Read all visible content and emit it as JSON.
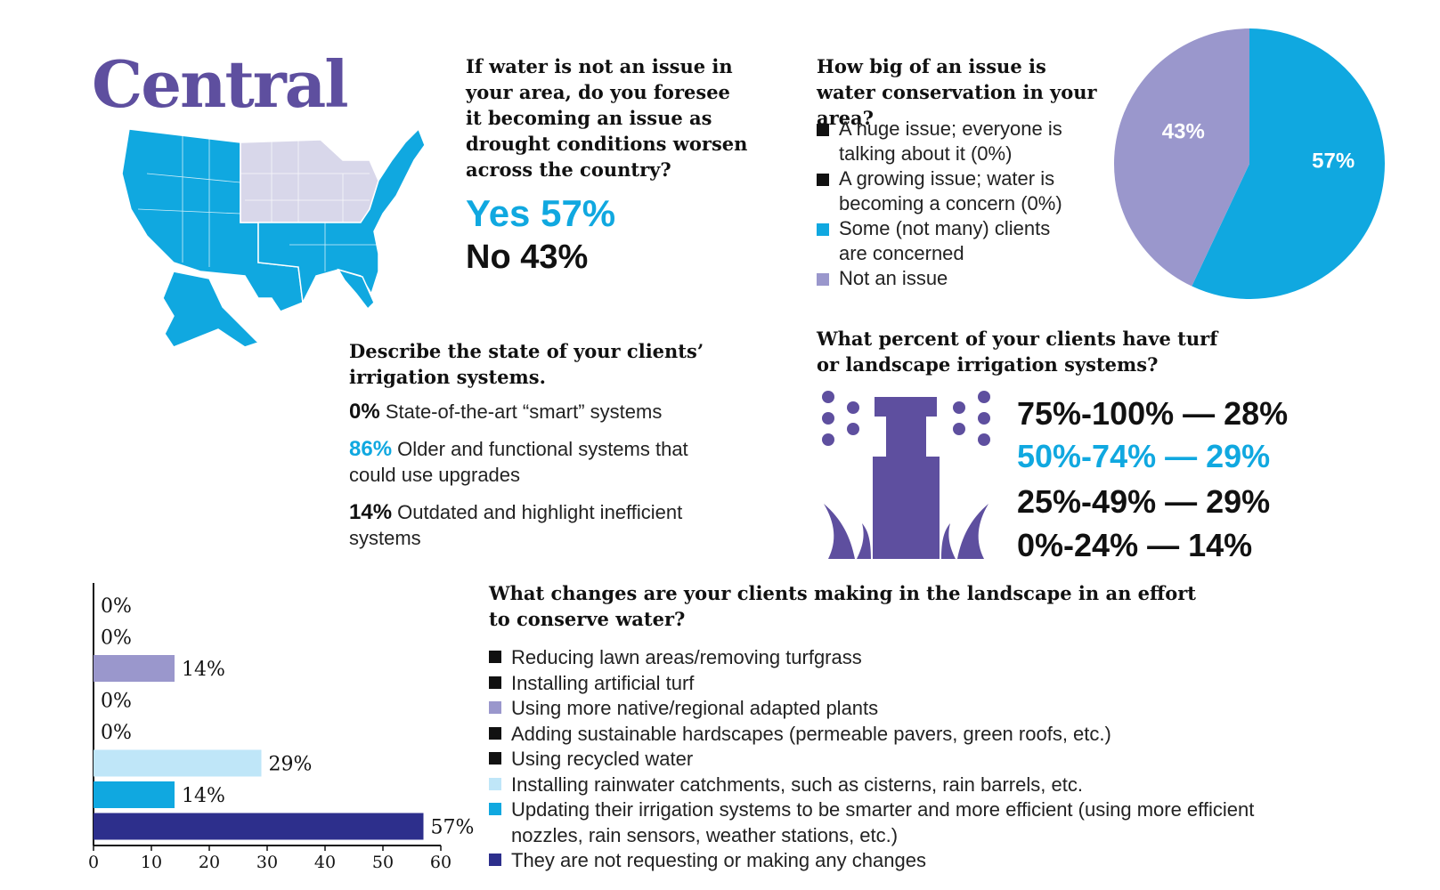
{
  "region_title": "Central",
  "colors": {
    "purple": "#5e4f9f",
    "lavender": "#9a97cc",
    "blue": "#10a8e0",
    "light_blue": "#bfe6f8",
    "navy": "#2d2f8c",
    "black": "#111111",
    "map_highlight": "#10a8e0",
    "map_region": "#d8d7ea"
  },
  "drought_question": {
    "text": "If water is not an issue in your area, do you foresee it becoming an issue as drought conditions worsen across the country?",
    "yes": "Yes 57%",
    "no": "No 43%"
  },
  "conservation_question": {
    "text": "How big of an issue is water conservation in your area?",
    "legend": [
      {
        "label": "A huge issue; everyone is talking about it (0%)",
        "color": "#111111"
      },
      {
        "label": "A growing issue; water is becoming a concern (0%)",
        "color": "#111111"
      },
      {
        "label": "Some (not many) clients are concerned",
        "color": "#10a8e0"
      },
      {
        "label": "Not an issue",
        "color": "#9a97cc"
      }
    ]
  },
  "irrigation_state_question": {
    "text": "Describe the state of your clients’ irrigation systems.",
    "items": [
      {
        "pct": "0%",
        "label": "State-of-the-art “smart” systems"
      },
      {
        "pct": "86%",
        "label": "Older and functional systems that could use upgrades"
      },
      {
        "pct": "14%",
        "label": "Outdated and highlight inefficient systems"
      }
    ]
  },
  "turf_question": {
    "text": "What percent of your clients have turf or landscape irrigation systems?",
    "rows": [
      "75%-100% — 28%",
      "50%-74% — 29%",
      "25%-49% — 29%",
      "0%-24% — 14%"
    ]
  },
  "changes_question": {
    "text": "What changes are your clients making in the landscape in an effort to conserve water?",
    "legend": [
      {
        "label": "Reducing lawn areas/removing turfgrass",
        "color": "#111111"
      },
      {
        "label": "Installing artificial turf",
        "color": "#111111"
      },
      {
        "label": "Using more native/regional adapted plants",
        "color": "#9a97cc"
      },
      {
        "label": "Adding sustainable hardscapes (permeable pavers, green roofs, etc.)",
        "color": "#111111"
      },
      {
        "label": "Using recycled water",
        "color": "#111111"
      },
      {
        "label": "Installing rainwater catchments, such as cisterns, rain barrels, etc.",
        "color": "#bfe6f8"
      },
      {
        "label": "Updating their irrigation systems to be smarter and more efficient (using more efficient nozzles, rain sensors, weather stations, etc.)",
        "color": "#10a8e0"
      },
      {
        "label": "They are not requesting or making any changes",
        "color": "#2d2f8c"
      }
    ]
  },
  "chart_data": [
    {
      "type": "pie",
      "slices": [
        {
          "value": 57,
          "label": "57%",
          "color": "#10a8e0"
        },
        {
          "value": 43,
          "label": "43%",
          "color": "#9a97cc"
        }
      ]
    },
    {
      "type": "bar",
      "orientation": "horizontal",
      "values": [
        0,
        0,
        14,
        0,
        0,
        29,
        14,
        57
      ],
      "labels": [
        "0%",
        "0%",
        "14%",
        "0%",
        "0%",
        "29%",
        "14%",
        "57%"
      ],
      "colors": [
        "#111111",
        "#111111",
        "#9a97cc",
        "#111111",
        "#111111",
        "#bfe6f8",
        "#10a8e0",
        "#2d2f8c"
      ],
      "xlim": [
        0,
        60
      ],
      "xticks": [
        "0",
        "10",
        "20",
        "30",
        "40",
        "50",
        "60"
      ]
    }
  ]
}
